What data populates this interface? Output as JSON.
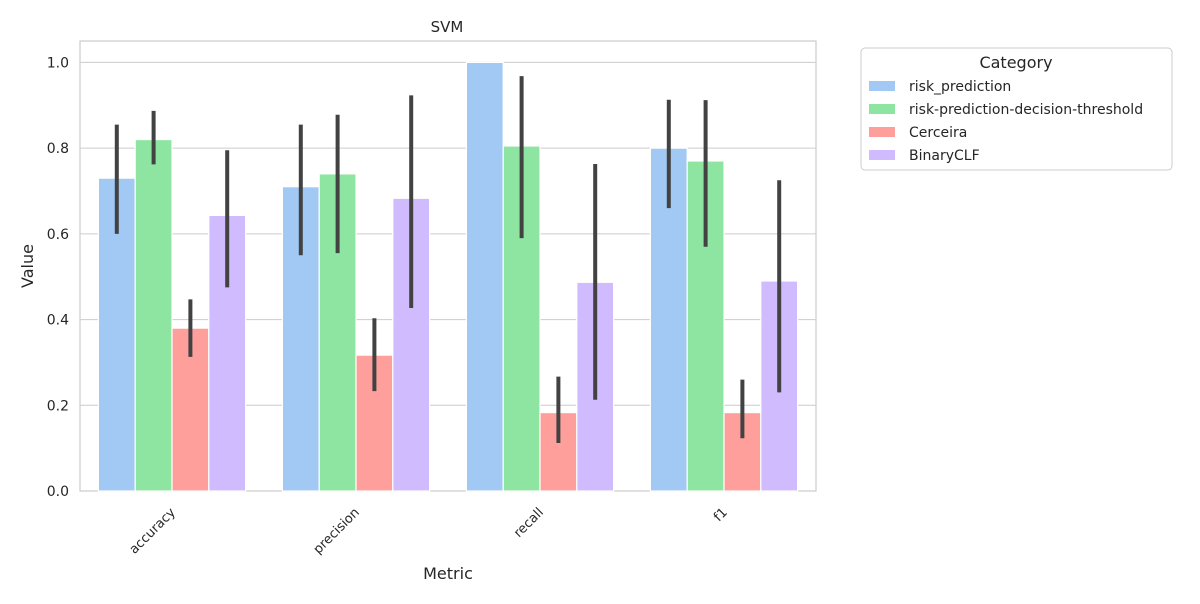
{
  "chart_data": {
    "type": "bar",
    "title": "SVM",
    "xlabel": "Metric",
    "ylabel": "Value",
    "categories": [
      "accuracy",
      "precision",
      "recall",
      "f1"
    ],
    "ylim": [
      0,
      1.05
    ],
    "yticks": [
      "0.0",
      "0.2",
      "0.4",
      "0.6",
      "0.8",
      "1.0"
    ],
    "grid": "horizontal",
    "legend": {
      "title": "Category",
      "placement": "outside-top-right"
    },
    "series": [
      {
        "name": "risk_prediction",
        "color": "#a1c9f4",
        "values": [
          0.73,
          0.71,
          1.0,
          0.8
        ],
        "ci_low": [
          0.6,
          0.55,
          1.0,
          0.66
        ],
        "ci_high": [
          0.855,
          0.855,
          1.0,
          0.913
        ]
      },
      {
        "name": "risk-prediction-decision-threshold",
        "color": "#8de5a1",
        "values": [
          0.82,
          0.74,
          0.805,
          0.77
        ],
        "ci_low": [
          0.762,
          0.555,
          0.59,
          0.57
        ],
        "ci_high": [
          0.887,
          0.878,
          0.968,
          0.912
        ]
      },
      {
        "name": "Cerceira",
        "color": "#ff9f9b",
        "values": [
          0.38,
          0.317,
          0.183,
          0.183
        ],
        "ci_low": [
          0.313,
          0.233,
          0.112,
          0.123
        ],
        "ci_high": [
          0.447,
          0.403,
          0.267,
          0.26
        ]
      },
      {
        "name": "BinaryCLF",
        "color": "#d0bbff",
        "values": [
          0.643,
          0.683,
          0.487,
          0.49
        ],
        "ci_low": [
          0.475,
          0.427,
          0.213,
          0.23
        ],
        "ci_high": [
          0.795,
          0.923,
          0.763,
          0.725
        ]
      }
    ]
  }
}
